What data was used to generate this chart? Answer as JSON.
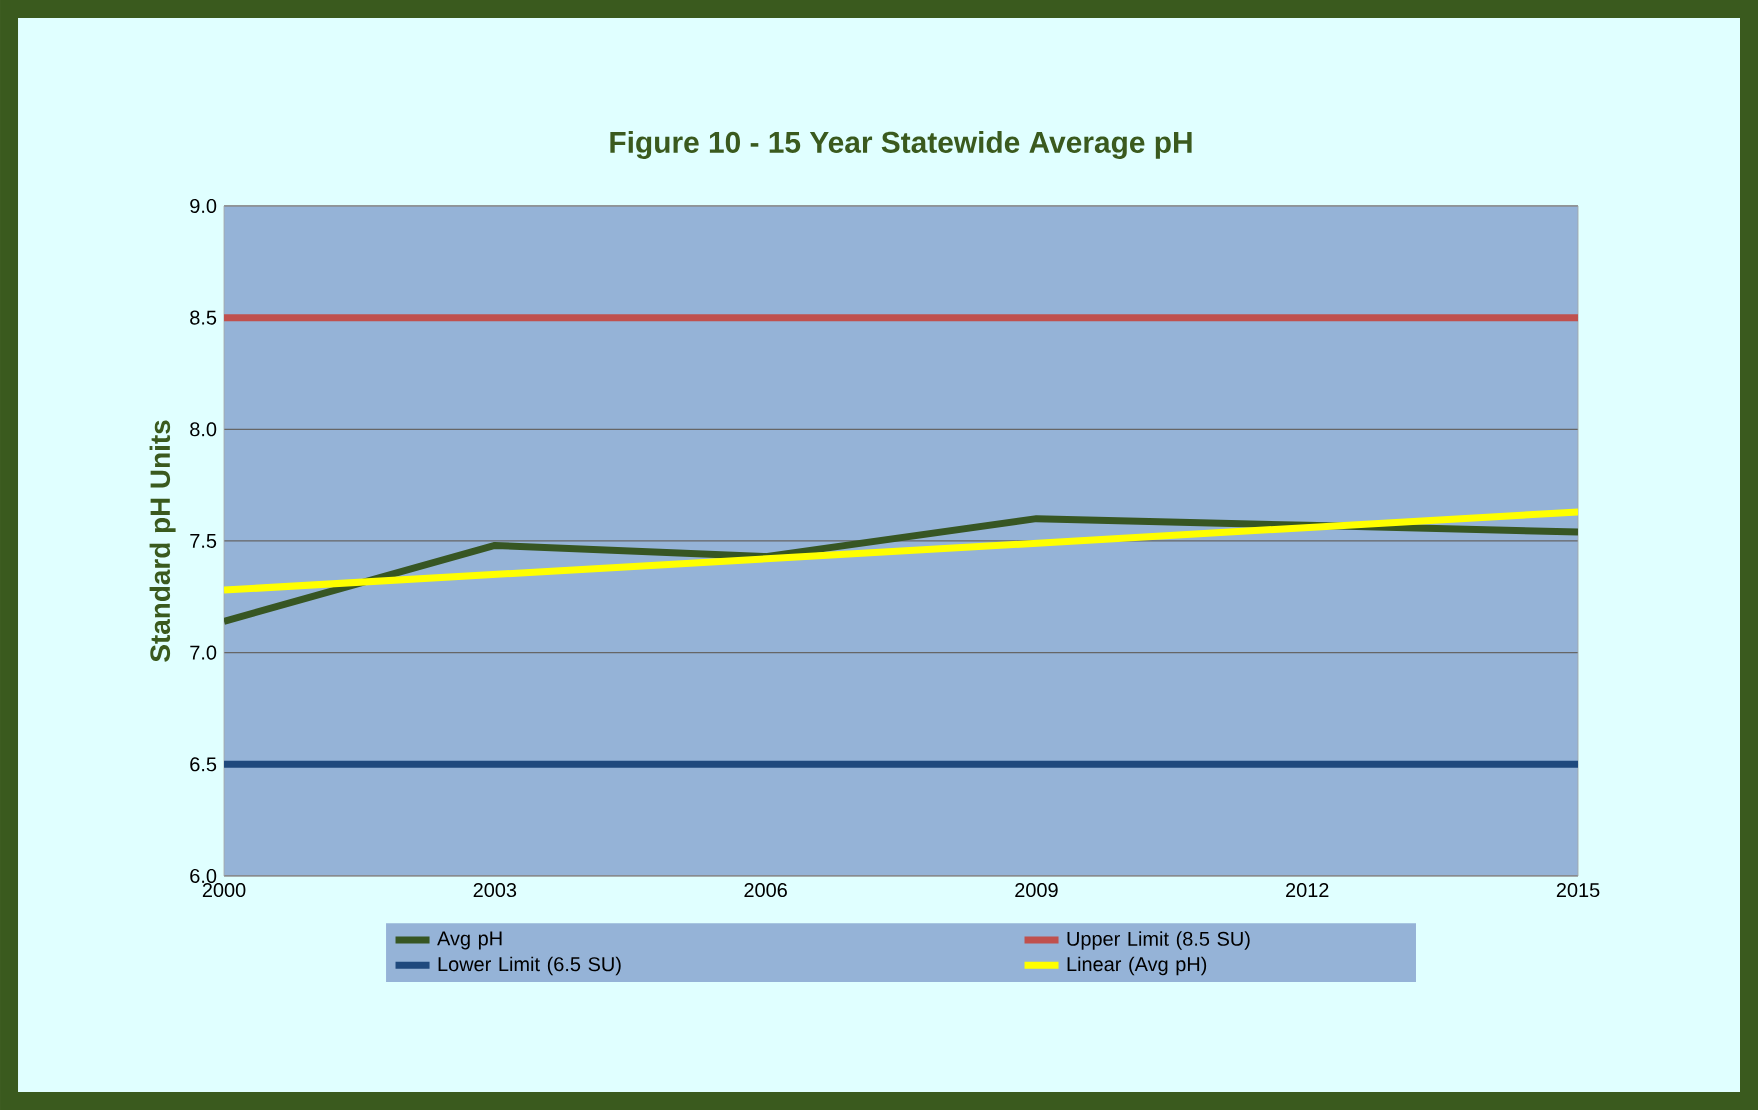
{
  "chart_data": {
    "type": "line",
    "title": "Figure 10 - 15 Year Statewide Average pH",
    "ylabel": "Standard pH Units",
    "xlim": [
      2000,
      2015
    ],
    "xticks": [
      2000,
      2003,
      2006,
      2009,
      2012,
      2015
    ],
    "ylim": [
      6.0,
      9.0
    ],
    "yticks": [
      {
        "value": 6.0,
        "label": "6.0"
      },
      {
        "value": 6.5,
        "label": "6.5"
      },
      {
        "value": 7.0,
        "label": "7.0"
      },
      {
        "value": 7.5,
        "label": "7.5"
      },
      {
        "value": 8.0,
        "label": "8.0"
      },
      {
        "value": 8.5,
        "label": "8.5"
      },
      {
        "value": 9.0,
        "label": "9.0"
      }
    ],
    "grid": "y",
    "legend": "bottom",
    "series": [
      {
        "name": "Avg pH",
        "color": "#375623",
        "x": [
          2000,
          2003,
          2006,
          2009,
          2012,
          2015
        ],
        "values": [
          7.14,
          7.48,
          7.43,
          7.6,
          7.57,
          7.54
        ]
      },
      {
        "name": "Upper Limit (8.5 SU)",
        "color": "#c0504d",
        "x": [
          2000,
          2015
        ],
        "values": [
          8.5,
          8.5
        ]
      },
      {
        "name": "Lower Limit (6.5 SU)",
        "color": "#1f497d",
        "x": [
          2000,
          2015
        ],
        "values": [
          6.5,
          6.5
        ]
      },
      {
        "name": "Linear (Avg pH)",
        "color": "#ffff00",
        "x": [
          2000,
          2015
        ],
        "values": [
          7.28,
          7.63
        ]
      }
    ]
  }
}
